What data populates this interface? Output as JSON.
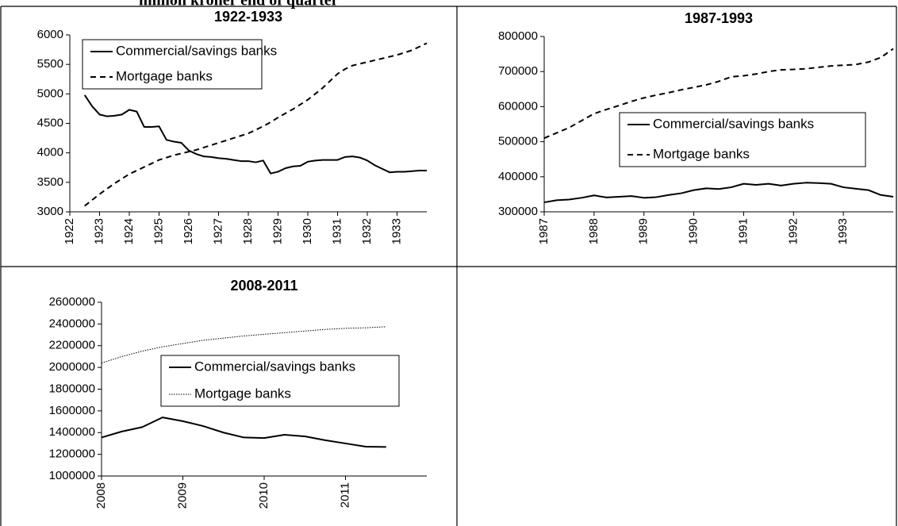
{
  "page_title": "million kroner end of quarter",
  "chart_data": [
    {
      "type": "line",
      "title": "1922-1933",
      "x": [
        1922.5,
        1922.75,
        1923,
        1923.25,
        1923.5,
        1923.75,
        1924,
        1924.25,
        1924.5,
        1924.75,
        1925,
        1925.25,
        1925.5,
        1925.75,
        1926,
        1926.25,
        1926.5,
        1926.75,
        1927,
        1927.25,
        1927.5,
        1927.75,
        1928,
        1928.25,
        1928.5,
        1928.75,
        1929,
        1929.25,
        1929.5,
        1929.75,
        1930,
        1930.25,
        1930.5,
        1930.75,
        1931,
        1931.25,
        1931.5,
        1931.75,
        1932,
        1932.25,
        1932.5,
        1932.75,
        1933,
        1933.25,
        1933.5,
        1933.75,
        1934
      ],
      "series": [
        {
          "name": "Commercial/savings banks",
          "color": "#000000",
          "style": "solid",
          "values": [
            4980,
            4790,
            4650,
            4620,
            4630,
            4650,
            4730,
            4700,
            4440,
            4440,
            4450,
            4220,
            4190,
            4170,
            4040,
            3980,
            3940,
            3930,
            3910,
            3900,
            3880,
            3860,
            3860,
            3840,
            3870,
            3650,
            3680,
            3740,
            3770,
            3780,
            3850,
            3870,
            3880,
            3880,
            3880,
            3930,
            3940,
            3920,
            3870,
            3790,
            3730,
            3670,
            3680,
            3680,
            3690,
            3700,
            3700
          ]
        },
        {
          "name": "Mortgage banks",
          "color": "#000000",
          "style": "dashed",
          "values": [
            3100,
            3200,
            3300,
            3390,
            3480,
            3560,
            3640,
            3700,
            3760,
            3820,
            3880,
            3920,
            3960,
            3990,
            4020,
            4050,
            4090,
            4130,
            4170,
            4210,
            4250,
            4290,
            4330,
            4390,
            4450,
            4520,
            4600,
            4670,
            4740,
            4820,
            4900,
            5000,
            5100,
            5220,
            5340,
            5420,
            5480,
            5510,
            5540,
            5570,
            5600,
            5630,
            5660,
            5700,
            5740,
            5800,
            5860
          ]
        }
      ],
      "xlim": [
        1922,
        1934
      ],
      "xticks": [
        1922,
        1923,
        1924,
        1925,
        1926,
        1927,
        1928,
        1929,
        1930,
        1931,
        1932,
        1933
      ],
      "ylim": [
        3000,
        6000
      ],
      "yticks": [
        3000,
        3500,
        4000,
        4500,
        5000,
        5500,
        6000
      ],
      "legend": "upper left",
      "grid": false
    },
    {
      "type": "line",
      "title": "1987-1993",
      "x": [
        1987,
        1987.25,
        1987.5,
        1987.75,
        1988,
        1988.25,
        1988.5,
        1988.75,
        1989,
        1989.25,
        1989.5,
        1989.75,
        1990,
        1990.25,
        1990.5,
        1990.75,
        1991,
        1991.25,
        1991.5,
        1991.75,
        1992,
        1992.25,
        1992.5,
        1992.75,
        1993,
        1993.25,
        1993.5,
        1993.75,
        1994
      ],
      "series": [
        {
          "name": "Commercial/savings banks",
          "color": "#000000",
          "style": "solid",
          "values": [
            327000,
            333000,
            335000,
            340000,
            347000,
            341000,
            343000,
            345000,
            340000,
            342000,
            348000,
            353000,
            362000,
            367000,
            365000,
            370000,
            380000,
            377000,
            380000,
            375000,
            380000,
            383000,
            382000,
            380000,
            370000,
            366000,
            362000,
            348000,
            343000
          ]
        },
        {
          "name": "Mortgage banks",
          "color": "#000000",
          "style": "dashed",
          "values": [
            510000,
            525000,
            540000,
            560000,
            580000,
            592000,
            603000,
            615000,
            625000,
            633000,
            640000,
            648000,
            655000,
            662000,
            672000,
            685000,
            688000,
            693000,
            700000,
            705000,
            706000,
            708000,
            712000,
            716000,
            718000,
            720000,
            727000,
            740000,
            765000
          ]
        }
      ],
      "xlim": [
        1987,
        1994
      ],
      "xticks": [
        1987,
        1988,
        1989,
        1990,
        1991,
        1992,
        1993
      ],
      "ylim": [
        300000,
        800000
      ],
      "yticks": [
        300000,
        400000,
        500000,
        600000,
        700000,
        800000
      ],
      "legend": "center right",
      "grid": false
    },
    {
      "type": "line",
      "title": "2008-2011",
      "x": [
        2008,
        2008.25,
        2008.5,
        2008.75,
        2009,
        2009.25,
        2009.5,
        2009.75,
        2010,
        2010.25,
        2010.5,
        2010.75,
        2011,
        2011.25,
        2011.5
      ],
      "series": [
        {
          "name": "Commercial/savings banks",
          "color": "#000000",
          "style": "solid",
          "values": [
            1355000,
            1410000,
            1450000,
            1540000,
            1505000,
            1460000,
            1400000,
            1355000,
            1350000,
            1380000,
            1365000,
            1330000,
            1300000,
            1270000,
            1268000
          ]
        },
        {
          "name": "Mortgage banks",
          "color": "#000000",
          "style": "dotted",
          "values": [
            2040000,
            2100000,
            2150000,
            2190000,
            2220000,
            2250000,
            2270000,
            2290000,
            2305000,
            2320000,
            2335000,
            2350000,
            2360000,
            2365000,
            2375000
          ]
        }
      ],
      "xlim": [
        2008,
        2012
      ],
      "xticks": [
        2008,
        2009,
        2010,
        2011
      ],
      "ylim": [
        1000000,
        2600000
      ],
      "yticks": [
        1000000,
        1200000,
        1400000,
        1600000,
        1800000,
        2000000,
        2200000,
        2400000,
        2600000
      ],
      "legend": "center right",
      "grid": false
    }
  ]
}
